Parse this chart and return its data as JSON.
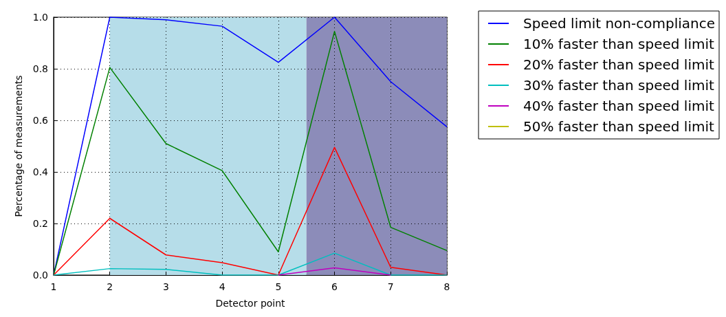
{
  "chart_data": {
    "type": "line",
    "xlabel": "Detector point",
    "ylabel": "Percentage of measurements",
    "x": [
      1,
      2,
      3,
      4,
      5,
      6,
      7,
      8
    ],
    "series": [
      {
        "name": "Speed limit non-compliance",
        "color": "#0000ff",
        "values": [
          0,
          1.0,
          0.99,
          0.965,
          0.825,
          1.0,
          0.75,
          0.575
        ]
      },
      {
        "name": "10% faster than speed limit",
        "color": "#008000",
        "values": [
          0,
          0.805,
          0.51,
          0.405,
          0.09,
          0.945,
          0.185,
          0.095
        ]
      },
      {
        "name": "20% faster than speed limit",
        "color": "#ff0000",
        "values": [
          0,
          0.22,
          0.078,
          0.048,
          0,
          0.495,
          0.03,
          0
        ]
      },
      {
        "name": "30% faster than speed limit",
        "color": "#00bfbf",
        "values": [
          0,
          0.025,
          0.022,
          0,
          0,
          0.085,
          0,
          0
        ]
      },
      {
        "name": "40% faster than speed limit",
        "color": "#bf00bf",
        "values": [
          null,
          null,
          null,
          null,
          0,
          0.028,
          0,
          null
        ]
      },
      {
        "name": "50% faster than speed limit",
        "color": "#bfbf00",
        "values": [
          null,
          null,
          null,
          null,
          null,
          null,
          null,
          null
        ]
      }
    ],
    "bands": [
      {
        "axis": "x",
        "from": 2,
        "to": 5.5,
        "color": "#b6dde9"
      },
      {
        "axis": "x",
        "from": 5.5,
        "to": 8,
        "color": "#8c8cb9"
      }
    ],
    "xlim": [
      1,
      8
    ],
    "xticks": [
      1,
      2,
      3,
      4,
      5,
      6,
      7,
      8
    ],
    "ylim": [
      0,
      1.0
    ],
    "yticks": [
      {
        "value": 0,
        "label": "0.0"
      },
      0.2,
      0.4,
      0.6,
      0.8,
      {
        "value": 1.0,
        "label": "1.0"
      }
    ],
    "grid": true,
    "legend": "top right",
    "line_style": "solid",
    "marker": "none"
  }
}
